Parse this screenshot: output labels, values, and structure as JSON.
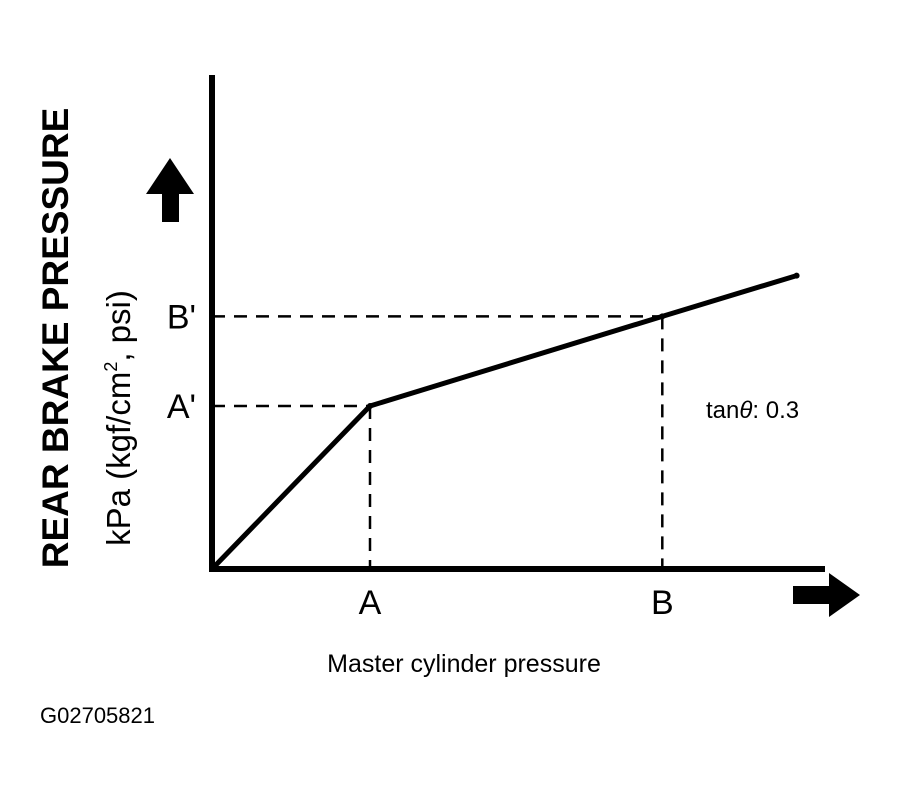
{
  "figure_id": "G02705821",
  "chart_data": {
    "type": "line",
    "title": "",
    "ylabel_title": "REAR BRAKE PRESSURE",
    "ylabel_units_prefix": "kPa (kgf/cm",
    "ylabel_units_sup": "2",
    "ylabel_units_suffix": ", psi)",
    "xlabel": "Master cylinder pressure",
    "x_ticks": [
      {
        "label": "A",
        "value": 1.0
      },
      {
        "label": "B",
        "value": 2.85
      }
    ],
    "y_ticks": [
      {
        "label": "A'",
        "value": 1.0
      },
      {
        "label": "B'",
        "value": 1.55
      }
    ],
    "xlim": [
      0,
      3.9
    ],
    "ylim": [
      0,
      3.0
    ],
    "series": [
      {
        "x": [
          0,
          1.0,
          2.85,
          3.7
        ],
        "y": [
          0,
          1.0,
          1.55,
          1.8
        ]
      }
    ],
    "annotation": {
      "text_prefix": "tan",
      "symbol": "θ",
      "text_suffix": ": 0.3"
    },
    "grid": false,
    "colors": {
      "line": "#000000",
      "background": "#ffffff"
    }
  }
}
